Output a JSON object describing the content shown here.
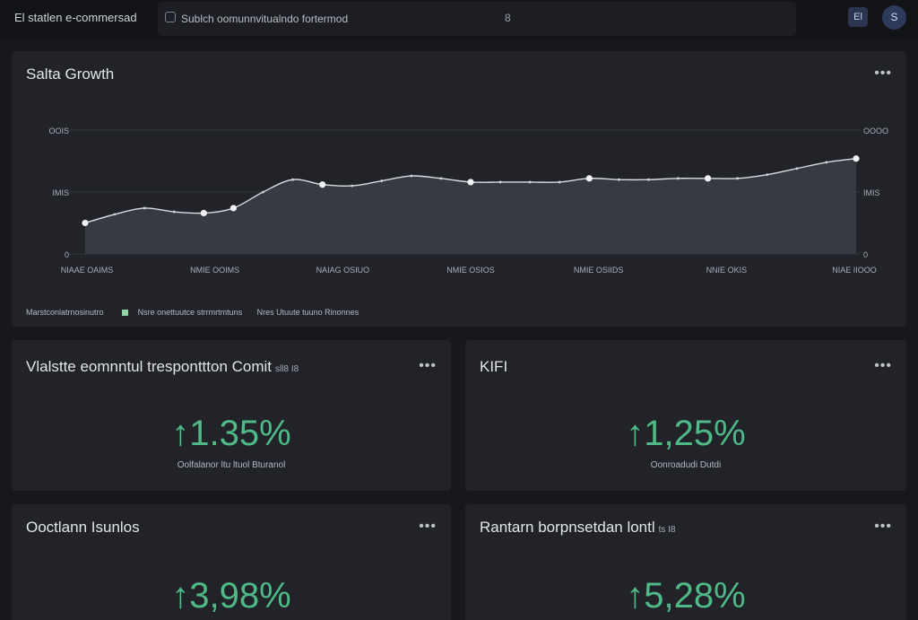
{
  "app": {
    "brand": "El statlen e-commersad"
  },
  "search": {
    "placeholder": "Sublch oomunnvitualndo fortermod",
    "value": "8"
  },
  "header": {
    "notif_icon": "grid-icon",
    "notif_label": "El",
    "avatar_label": "S"
  },
  "chart_card": {
    "title": "Salta Growth",
    "more": "•••",
    "legend": {
      "caption": "Marstconlatrnosinutro",
      "series1": "Nsre onettuutce strrmrtmtuns",
      "series2": "Nres Utuute tuuno Rinonnes"
    }
  },
  "chart_data": {
    "type": "area",
    "title": "Salta Growth",
    "left_ticks": [
      "OOIS",
      "IMIS",
      "0"
    ],
    "right_ticks": [
      "OOOO",
      "IMIS",
      "0"
    ],
    "x_labels": [
      "NIAAE OAIMS",
      "NMIE OOIMS",
      "NAIAG OSIUO",
      "NMIE OSIOS",
      "NMIE OSIIDS",
      "NNIE OKIS",
      "NIAE IIOOO"
    ],
    "ylim": [
      0,
      100
    ],
    "values": [
      25,
      32,
      37,
      34,
      33,
      37,
      50,
      60,
      56,
      55,
      59,
      63,
      61,
      58,
      58,
      58,
      58,
      61,
      60,
      60,
      61,
      61,
      61,
      64,
      69,
      74,
      77
    ],
    "markers": [
      0,
      4,
      5,
      8,
      13,
      17,
      21,
      26
    ]
  },
  "kpis": [
    {
      "title": "Vlalstte eomnntul tresponttton Comit",
      "sub": "sll8 I8",
      "value": "↑1.35%",
      "label": "Oolfalanor ltu ltuol Bturanol"
    },
    {
      "title": "KIFI",
      "sub": "",
      "value": "↑1,25%",
      "label": "Oonroadudi Dutdi"
    },
    {
      "title": "Ooctlann Isunlos",
      "sub": "",
      "value": "↑3,98%",
      "label": ""
    },
    {
      "title": "Rantarn borpnsetdan lontl",
      "sub": "ts I8",
      "value": "↑5,28%",
      "label": ""
    }
  ],
  "colors": {
    "accent_green": "#4fb987",
    "card_bg": "#212328",
    "page_bg": "#16181c"
  }
}
